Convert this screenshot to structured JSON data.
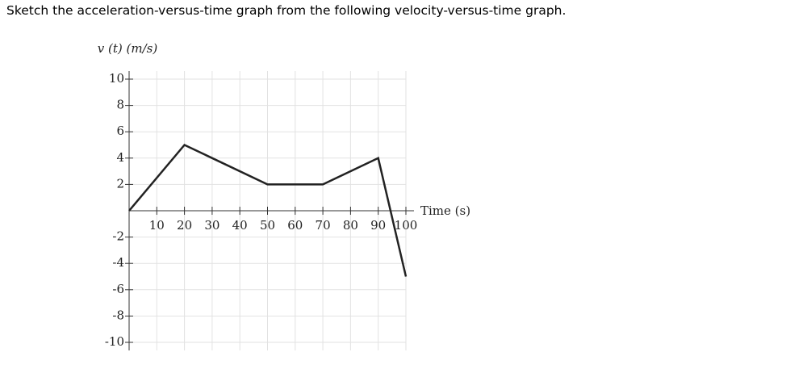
{
  "question": "Sketch the acceleration-versus-time graph from the following velocity-versus-time graph.",
  "chart_data": {
    "type": "line",
    "y_label": "v (t) (m/s)",
    "x_label": "Time (s)",
    "x": [
      0,
      20,
      50,
      70,
      90,
      100
    ],
    "series": [
      {
        "color": "#222222",
        "values": [
          0,
          5,
          2,
          2,
          4,
          -5
        ]
      }
    ],
    "xlim": [
      0,
      100
    ],
    "ylim": [
      -10,
      10
    ],
    "xticks": [
      10,
      20,
      30,
      40,
      50,
      60,
      70,
      80,
      90,
      100
    ],
    "yticks": [
      -10,
      -8,
      -6,
      -4,
      -2,
      2,
      4,
      6,
      8,
      10
    ],
    "grid": true
  }
}
